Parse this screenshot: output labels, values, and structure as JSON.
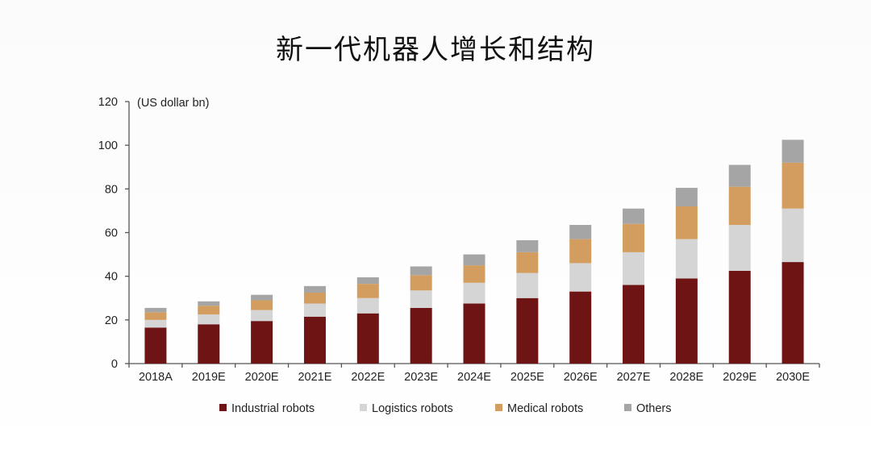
{
  "title": "新一代机器人增长和结构",
  "chart_data": {
    "type": "bar",
    "stacked": true,
    "unit_label": "(US dollar bn)",
    "categories": [
      "2018A",
      "2019E",
      "2020E",
      "2021E",
      "2022E",
      "2023E",
      "2024E",
      "2025E",
      "2026E",
      "2027E",
      "2028E",
      "2029E",
      "2030E"
    ],
    "ylim": [
      0,
      120
    ],
    "yticks": [
      0,
      20,
      40,
      60,
      80,
      100,
      120
    ],
    "grid": false,
    "legend_position": "bottom",
    "series": [
      {
        "name": "Industrial robots",
        "color": "#6e1414",
        "values": [
          16.5,
          18,
          19.5,
          21.5,
          23,
          25.5,
          27.5,
          30,
          33,
          36,
          39,
          42.5,
          46.5
        ]
      },
      {
        "name": "Logistics robots",
        "color": "#d5d5d5",
        "values": [
          3.5,
          4.5,
          5,
          6,
          7,
          8,
          9.5,
          11.5,
          13,
          15,
          18,
          21,
          24.5
        ]
      },
      {
        "name": "Medical robots",
        "color": "#d29d5e",
        "values": [
          3.5,
          4,
          4.5,
          5,
          6.5,
          7,
          8,
          9.5,
          11,
          13,
          15,
          17.5,
          21
        ]
      },
      {
        "name": "Others",
        "color": "#a5a5a5",
        "values": [
          2,
          2,
          2.5,
          3,
          3,
          4,
          5,
          5.5,
          6.5,
          7,
          8.5,
          10,
          10.5
        ]
      }
    ]
  }
}
